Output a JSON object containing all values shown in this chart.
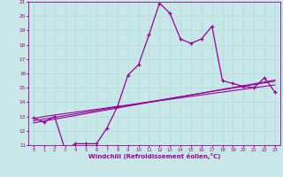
{
  "xlabel": "Windchill (Refroidissement éolien,°C)",
  "bg_color": "#c8e8e8",
  "line_color": "#990099",
  "hours": [
    0,
    1,
    2,
    3,
    4,
    5,
    6,
    7,
    8,
    9,
    10,
    11,
    12,
    13,
    14,
    15,
    16,
    17,
    18,
    19,
    20,
    21,
    22,
    23
  ],
  "temp": [
    12.9,
    12.6,
    13.0,
    10.7,
    11.1,
    11.1,
    11.1,
    12.2,
    13.7,
    15.9,
    16.6,
    18.7,
    20.9,
    20.2,
    18.4,
    18.1,
    18.4,
    19.3,
    15.5,
    15.3,
    15.1,
    15.0,
    15.7,
    14.7
  ],
  "reg1": [
    12.85,
    13.0,
    13.1,
    13.2,
    13.3,
    13.4,
    13.5,
    13.6,
    13.7,
    13.8,
    13.9,
    14.0,
    14.1,
    14.2,
    14.3,
    14.4,
    14.5,
    14.6,
    14.7,
    14.8,
    14.9,
    15.0,
    15.1,
    15.2
  ],
  "reg2": [
    12.7,
    12.82,
    12.94,
    13.06,
    13.18,
    13.3,
    13.42,
    13.54,
    13.66,
    13.78,
    13.9,
    14.02,
    14.14,
    14.26,
    14.38,
    14.5,
    14.62,
    14.74,
    14.86,
    14.98,
    15.1,
    15.22,
    15.34,
    15.46
  ],
  "reg3": [
    12.55,
    12.68,
    12.81,
    12.94,
    13.07,
    13.2,
    13.33,
    13.46,
    13.59,
    13.72,
    13.85,
    13.98,
    14.11,
    14.24,
    14.37,
    14.5,
    14.63,
    14.76,
    14.89,
    15.02,
    15.15,
    15.28,
    15.41,
    15.54
  ],
  "ylim": [
    11,
    21
  ],
  "yticks": [
    11,
    12,
    13,
    14,
    15,
    16,
    17,
    18,
    19,
    20,
    21
  ],
  "xticks": [
    0,
    1,
    2,
    3,
    4,
    5,
    6,
    7,
    8,
    9,
    10,
    11,
    12,
    13,
    14,
    15,
    16,
    17,
    18,
    19,
    20,
    21,
    22,
    23
  ]
}
